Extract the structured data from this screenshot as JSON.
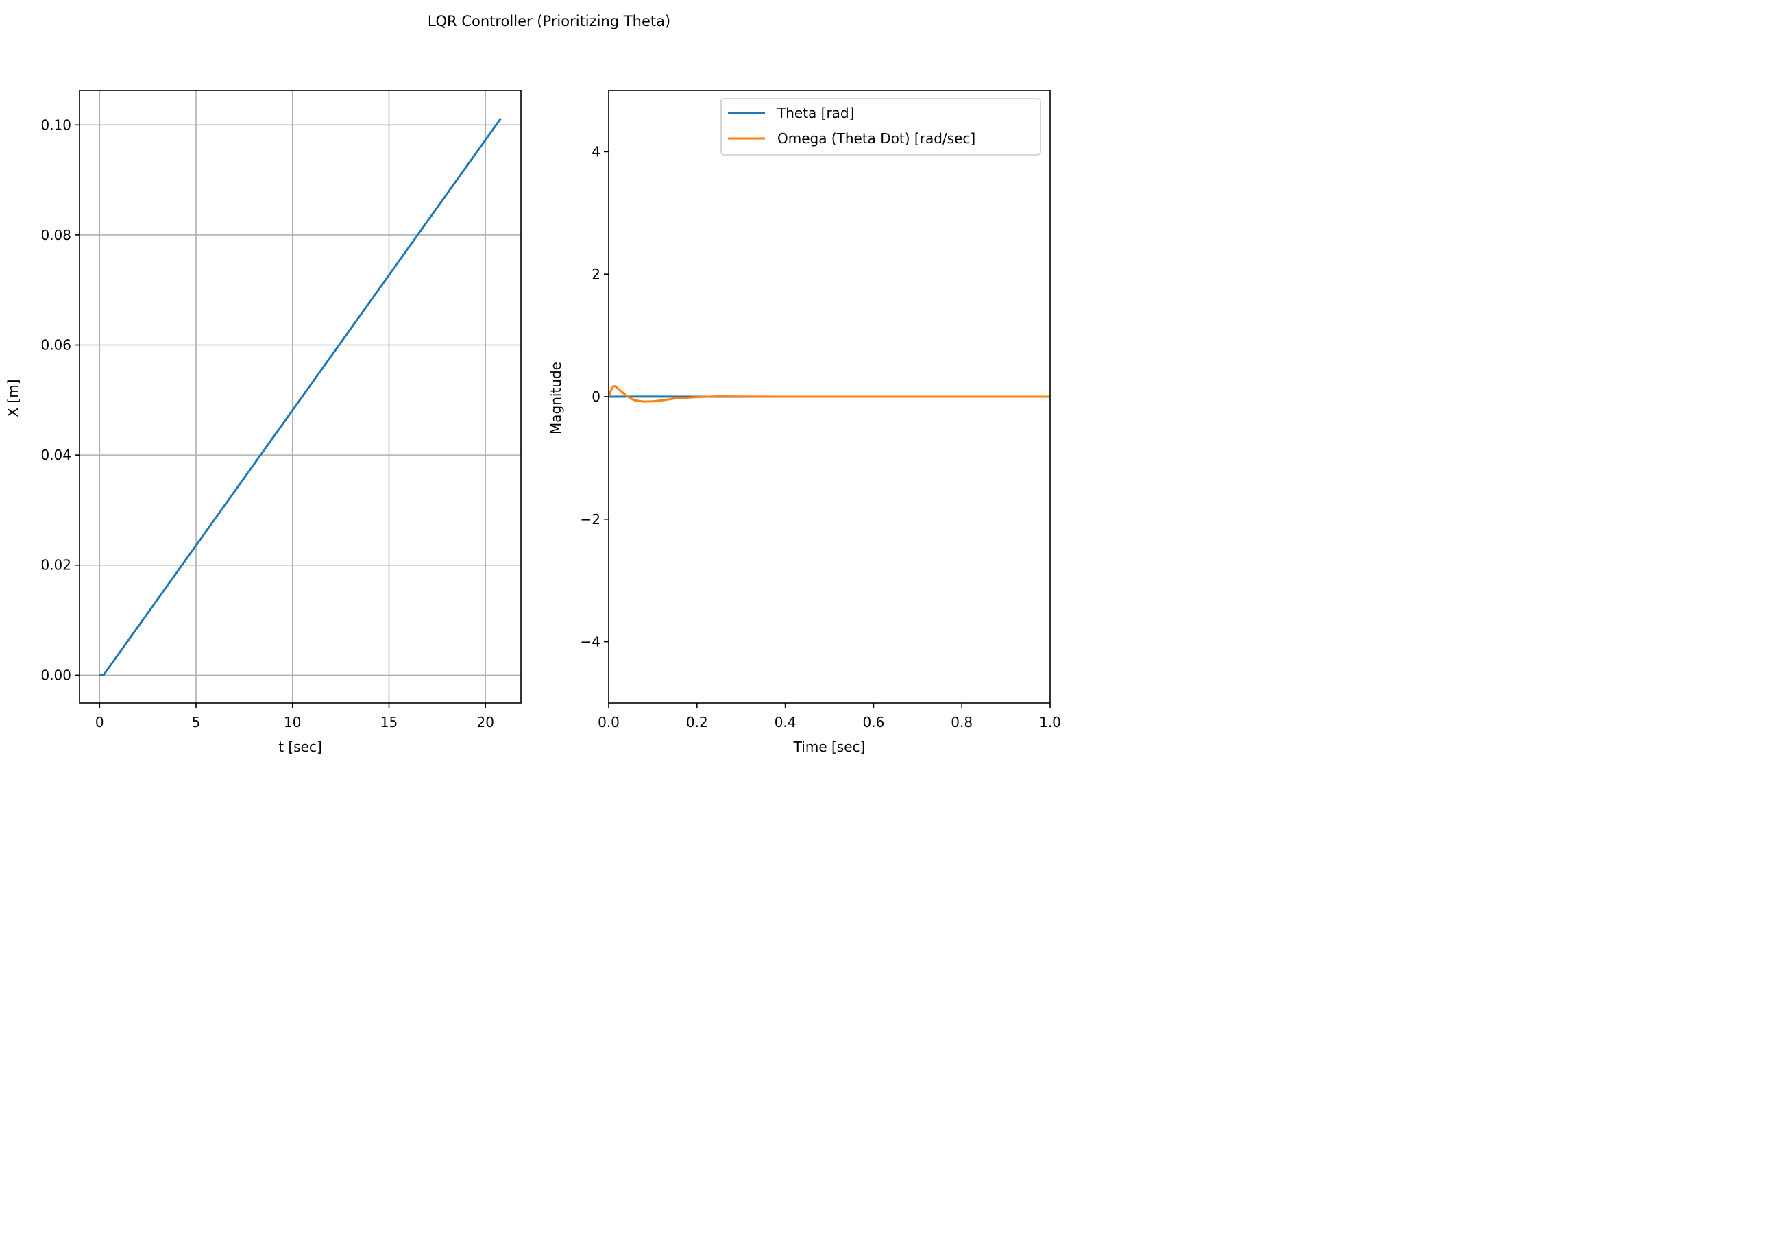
{
  "title": "LQR Controller (Prioritizing Theta)",
  "chart_data": [
    {
      "type": "line",
      "xlabel": "t [sec]",
      "ylabel": "X [m]",
      "xlim": [
        -1.04,
        21.84
      ],
      "ylim": [
        -0.00506,
        0.10626
      ],
      "xticks": [
        0,
        5,
        10,
        15,
        20
      ],
      "xtick_labels": [
        "0",
        "5",
        "10",
        "15",
        "20"
      ],
      "yticks": [
        0.0,
        0.02,
        0.04,
        0.06,
        0.08,
        0.1
      ],
      "ytick_labels": [
        "0.00",
        "0.02",
        "0.04",
        "0.06",
        "0.08",
        "0.10"
      ],
      "grid": true,
      "legend": null,
      "series": [
        {
          "color": "#1f77b4",
          "x": [
            0,
            0.2,
            20.8
          ],
          "y": [
            0,
            0,
            0.1012
          ]
        }
      ]
    },
    {
      "type": "line",
      "xlabel": "Time [sec]",
      "ylabel": "Magnitude",
      "xlim": [
        0,
        1
      ],
      "ylim": [
        -5,
        5
      ],
      "xticks": [
        0,
        0.2,
        0.4,
        0.6,
        0.8,
        1.0
      ],
      "xtick_labels": [
        "0.0",
        "0.2",
        "0.4",
        "0.6",
        "0.8",
        "1.0"
      ],
      "yticks": [
        -4,
        -2,
        0,
        2,
        4
      ],
      "ytick_labels": [
        "−4",
        "−2",
        "0",
        "2",
        "4"
      ],
      "grid": false,
      "legend": "upper right",
      "series": [
        {
          "name": "Theta  [rad]",
          "color": "#1f77b4",
          "x": [
            0,
            0.05,
            0.1,
            0.2,
            0.4,
            0.6,
            0.8,
            1.0
          ],
          "y": [
            0,
            0.002,
            0.001,
            0,
            0,
            0,
            0,
            0
          ]
        },
        {
          "name": "Omega (Theta Dot)  [rad/sec]",
          "color": "#ff7f0e",
          "x": [
            0,
            0.005,
            0.01,
            0.015,
            0.02,
            0.03,
            0.04,
            0.05,
            0.06,
            0.08,
            0.1,
            0.12,
            0.15,
            0.2,
            0.25,
            0.3,
            0.4,
            0.6,
            0.8,
            1.0
          ],
          "y": [
            0,
            0.1,
            0.17,
            0.17,
            0.14,
            0.08,
            0.02,
            -0.03,
            -0.06,
            -0.08,
            -0.075,
            -0.06,
            -0.03,
            -0.005,
            0.005,
            0.003,
            0,
            0,
            0,
            0
          ]
        }
      ]
    }
  ]
}
